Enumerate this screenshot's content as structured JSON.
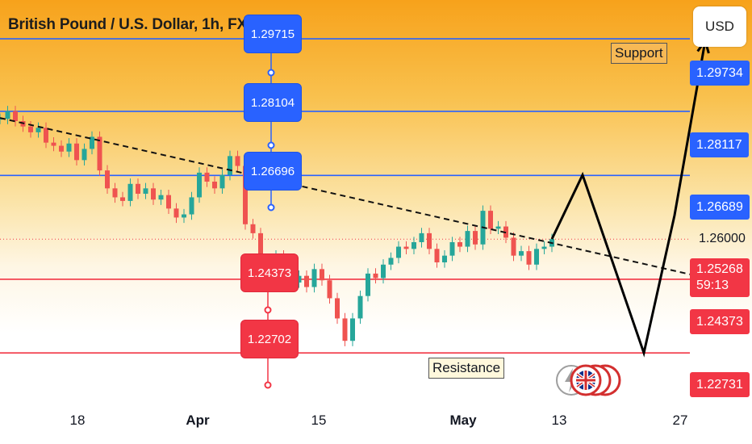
{
  "title": "British Pound / U.S. Dollar, 1h, FXCM",
  "currency_button": "USD",
  "colors": {
    "blue": "#2962ff",
    "red": "#f23645",
    "price_up": "#26a69a",
    "price_down": "#ef5350",
    "header_orange": "#f7a21b"
  },
  "chart_data": {
    "type": "line",
    "title": "British Pound / U.S. Dollar, 1h, FXCM",
    "ylim": [
      1.216,
      1.306
    ],
    "x_ticks": [
      "18",
      "Apr",
      "15",
      "May",
      "13",
      "27"
    ],
    "x_ticks_bold": [
      "Apr",
      "May"
    ],
    "price_series": {
      "x_index": [
        0,
        1,
        2,
        3,
        4,
        5,
        6,
        7,
        8,
        9,
        10,
        11,
        12,
        13,
        14,
        15,
        16,
        17,
        18,
        19,
        20,
        21,
        22,
        23,
        24,
        25,
        26,
        27,
        28,
        29,
        30,
        31,
        32,
        33,
        34,
        35,
        36,
        37,
        38,
        39,
        40,
        41,
        42,
        43,
        44,
        45,
        46,
        47,
        48,
        49,
        50,
        51,
        52,
        53,
        54,
        55,
        56,
        57,
        58,
        59,
        60,
        61,
        62,
        63,
        64,
        65,
        66,
        67,
        68,
        69,
        70,
        71,
        72
      ],
      "close": [
        1.2795,
        1.2812,
        1.279,
        1.2778,
        1.2765,
        1.2775,
        1.2742,
        1.2735,
        1.2722,
        1.274,
        1.2703,
        1.2728,
        1.2755,
        1.268,
        1.264,
        1.262,
        1.2612,
        1.265,
        1.2628,
        1.264,
        1.2615,
        1.2625,
        1.2595,
        1.2575,
        1.2582,
        1.262,
        1.2675,
        1.2655,
        1.264,
        1.267,
        1.2712,
        1.269,
        1.256,
        1.254,
        1.248,
        1.244,
        1.249,
        1.2455,
        1.243,
        1.2445,
        1.242,
        1.246,
        1.2435,
        1.2395,
        1.235,
        1.23,
        1.235,
        1.24,
        1.245,
        1.244,
        1.247,
        1.2485,
        1.251,
        1.2505,
        1.252,
        1.254,
        1.2505,
        1.2475,
        1.249,
        1.252,
        1.251,
        1.2545,
        1.2515,
        1.259,
        1.255,
        1.2555,
        1.253,
        1.249,
        1.25,
        1.247,
        1.2505,
        1.251,
        1.2527
      ]
    },
    "trendline": {
      "style": "dashed",
      "from_index": 0,
      "from_price": 1.2797,
      "to_index": 95,
      "to_price": 1.2429
    },
    "projection": {
      "x_index": [
        72,
        76,
        84,
        88,
        92
      ],
      "price": [
        1.2527,
        1.267,
        1.2273,
        1.258,
        1.2969
      ]
    },
    "horizontal_levels": [
      {
        "price": 1.29734,
        "label": "1.29734",
        "color": "blue"
      },
      {
        "price": 1.28117,
        "label": "1.28117",
        "color": "blue"
      },
      {
        "price": 1.26689,
        "label": "1.26689",
        "color": "blue"
      },
      {
        "price": 1.24373,
        "label": "1.24373",
        "color": "red"
      },
      {
        "price": 1.22731,
        "label": "1.22731",
        "color": "red"
      }
    ],
    "price_axis": {
      "plain_labels": [
        "1.26000"
      ],
      "current_price": "1.25268",
      "countdown": "59:13"
    },
    "callouts": [
      {
        "value": "1.29715",
        "color": "blue"
      },
      {
        "value": "1.28104",
        "color": "blue"
      },
      {
        "value": "1.26696",
        "color": "blue"
      },
      {
        "value": "1.24373",
        "color": "red"
      },
      {
        "value": "1.22702",
        "color": "red"
      }
    ],
    "annotations": [
      "Support",
      "Resistance"
    ]
  }
}
